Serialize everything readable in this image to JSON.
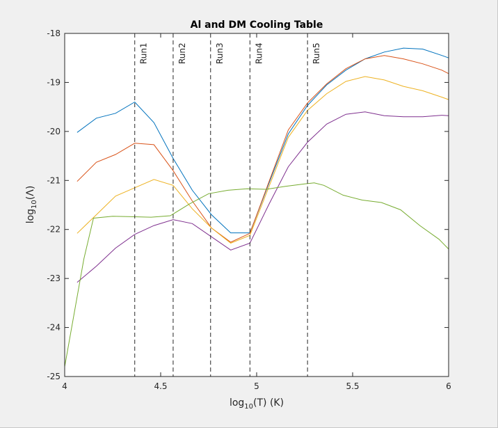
{
  "chart_data": {
    "type": "line",
    "title": "Al and DM Cooling Table",
    "xlabel": {
      "pre": "log",
      "sub": "10",
      "post": "(T) (K)"
    },
    "ylabel": {
      "pre": "log",
      "sub": "10",
      "post": "(Λ)"
    },
    "xlim": [
      4,
      6
    ],
    "ylim": [
      -25,
      -18
    ],
    "xticks": [
      4,
      4.5,
      5,
      5.5,
      6
    ],
    "xtick_labels": [
      "4",
      "4.5",
      "5",
      "5.5",
      "6"
    ],
    "yticks": [
      -25,
      -24,
      -23,
      -22,
      -21,
      -20,
      -19,
      -18
    ],
    "ytick_labels": [
      "-25",
      "-24",
      "-23",
      "-22",
      "-21",
      "-20",
      "-19",
      "-18"
    ],
    "grid": false,
    "vlines": [
      {
        "label": "Run1",
        "x": 4.365
      },
      {
        "label": "Run2",
        "x": 4.565
      },
      {
        "label": "Run3",
        "x": 4.76
      },
      {
        "label": "Run4",
        "x": 4.965
      },
      {
        "label": "Run5",
        "x": 5.265
      }
    ],
    "series": [
      {
        "color": "#0072bd",
        "x": [
          4.065,
          4.165,
          4.265,
          4.365,
          4.465,
          4.565,
          4.665,
          4.765,
          4.865,
          4.965,
          5.065,
          5.165,
          5.265,
          5.365,
          5.465,
          5.565,
          5.665,
          5.765,
          5.865,
          5.965,
          6.0
        ],
        "y": [
          -20.02,
          -19.73,
          -19.63,
          -19.4,
          -19.82,
          -20.55,
          -21.2,
          -21.7,
          -22.07,
          -22.07,
          -21.05,
          -20.05,
          -19.47,
          -19.05,
          -18.75,
          -18.52,
          -18.38,
          -18.3,
          -18.32,
          -18.45,
          -18.5
        ]
      },
      {
        "color": "#d95319",
        "x": [
          4.065,
          4.165,
          4.265,
          4.365,
          4.465,
          4.565,
          4.665,
          4.765,
          4.865,
          4.965,
          5.065,
          5.165,
          5.265,
          5.365,
          5.465,
          5.565,
          5.665,
          5.765,
          5.865,
          5.965,
          6.0
        ],
        "y": [
          -21.02,
          -20.63,
          -20.47,
          -20.24,
          -20.27,
          -20.8,
          -21.42,
          -21.97,
          -22.26,
          -22.08,
          -21.02,
          -19.97,
          -19.42,
          -19.03,
          -18.72,
          -18.52,
          -18.45,
          -18.52,
          -18.62,
          -18.75,
          -18.82
        ]
      },
      {
        "color": "#edb120",
        "x": [
          4.065,
          4.165,
          4.265,
          4.365,
          4.465,
          4.565,
          4.665,
          4.765,
          4.865,
          4.965,
          5.065,
          5.165,
          5.265,
          5.365,
          5.465,
          5.565,
          5.665,
          5.765,
          5.865,
          5.965,
          6.0
        ],
        "y": [
          -22.08,
          -21.7,
          -21.32,
          -21.15,
          -20.98,
          -21.1,
          -21.58,
          -21.97,
          -22.28,
          -22.12,
          -21.12,
          -20.12,
          -19.57,
          -19.23,
          -18.98,
          -18.88,
          -18.95,
          -19.08,
          -19.17,
          -19.3,
          -19.35
        ]
      },
      {
        "color": "#7e2f8e",
        "x": [
          4.065,
          4.165,
          4.265,
          4.365,
          4.465,
          4.565,
          4.665,
          4.765,
          4.865,
          4.965,
          5.065,
          5.165,
          5.265,
          5.365,
          5.465,
          5.565,
          5.665,
          5.765,
          5.865,
          5.965,
          6.0
        ],
        "y": [
          -23.08,
          -22.75,
          -22.38,
          -22.1,
          -21.92,
          -21.8,
          -21.88,
          -22.15,
          -22.42,
          -22.28,
          -21.48,
          -20.72,
          -20.22,
          -19.85,
          -19.65,
          -19.6,
          -19.68,
          -19.7,
          -19.7,
          -19.67,
          -19.68
        ]
      },
      {
        "color": "#77ac30",
        "x": [
          4.0,
          4.1,
          4.15,
          4.25,
          4.35,
          4.45,
          4.55,
          4.65,
          4.75,
          4.85,
          4.95,
          5.05,
          5.15,
          5.25,
          5.3,
          5.35,
          5.45,
          5.55,
          5.65,
          5.75,
          5.85,
          5.95,
          6.0
        ],
        "y": [
          -24.8,
          -22.6,
          -21.77,
          -21.73,
          -21.74,
          -21.75,
          -21.72,
          -21.48,
          -21.27,
          -21.2,
          -21.17,
          -21.18,
          -21.12,
          -21.07,
          -21.05,
          -21.1,
          -21.3,
          -21.4,
          -21.45,
          -21.6,
          -21.92,
          -22.2,
          -22.4
        ]
      }
    ]
  }
}
